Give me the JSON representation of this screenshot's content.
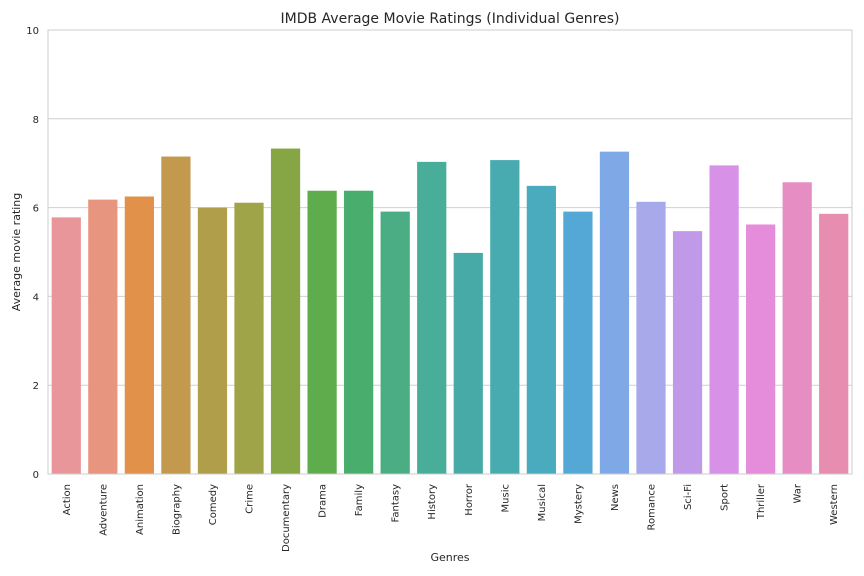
{
  "chart_data": {
    "type": "bar",
    "title": "IMDB Average Movie Ratings (Individual Genres)",
    "xlabel": "Genres",
    "ylabel": "Average movie rating",
    "ylim": [
      0,
      10
    ],
    "yticks": [
      0,
      2,
      4,
      6,
      8,
      10
    ],
    "grid": "horizontal",
    "categories": [
      "Action",
      "Adventure",
      "Animation",
      "Biography",
      "Comedy",
      "Crime",
      "Documentary",
      "Drama",
      "Family",
      "Fantasy",
      "History",
      "Horror",
      "Music",
      "Musical",
      "Mystery",
      "News",
      "Romance",
      "Sci-Fi",
      "Sport",
      "Thriller",
      "War",
      "Western"
    ],
    "values": [
      5.78,
      6.18,
      6.25,
      7.15,
      6.0,
      6.11,
      7.33,
      6.38,
      6.38,
      5.91,
      7.03,
      4.98,
      7.07,
      6.49,
      5.91,
      7.26,
      6.13,
      5.47,
      6.95,
      5.62,
      6.57,
      5.86
    ],
    "colors": [
      "#e9969b",
      "#e8957f",
      "#e1914a",
      "#c39a4d",
      "#b09e4a",
      "#9fa449",
      "#86a544",
      "#5eac4c",
      "#49ad6d",
      "#4aad84",
      "#48ad99",
      "#48aaa7",
      "#48abb0",
      "#4aabbf",
      "#53a8d6",
      "#7fa9e6",
      "#a8a9eb",
      "#c09ae9",
      "#d792e8",
      "#e58ddb",
      "#e68dc3",
      "#e68db0"
    ]
  }
}
